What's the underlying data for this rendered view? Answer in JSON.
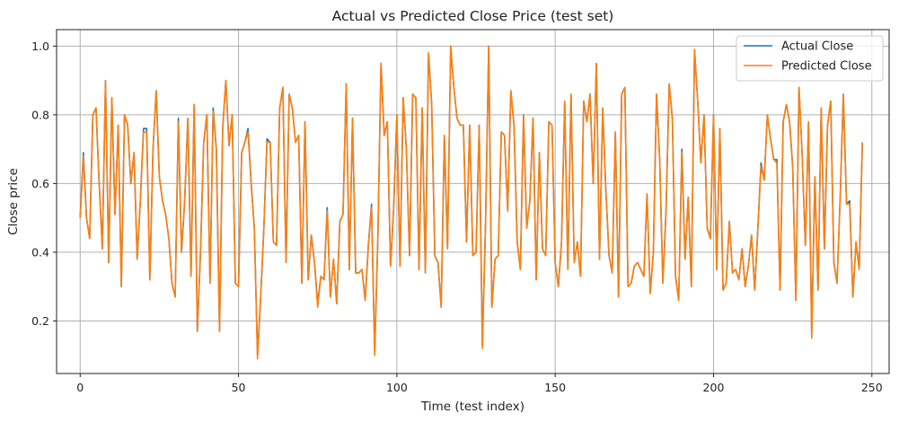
{
  "chart_data": {
    "type": "line",
    "title": "Actual vs Predicted Close Price (test set)",
    "xlabel": "Time (test index)",
    "ylabel": "Close price",
    "xlim": [
      -7.45,
      255.45
    ],
    "ylim": [
      0.047,
      1.048
    ],
    "xticks": [
      0,
      50,
      100,
      150,
      200,
      250
    ],
    "yticks": [
      0.2,
      0.4,
      0.6,
      0.8,
      1.0
    ],
    "xtick_labels": [
      "0",
      "50",
      "100",
      "150",
      "200",
      "250"
    ],
    "ytick_labels": [
      "0.2",
      "0.4",
      "0.6",
      "0.8",
      "1.0"
    ],
    "grid": true,
    "legend_position": "top-right",
    "series": [
      {
        "name": "Actual Close",
        "color": "#1f77b4",
        "values": [
          0.5,
          0.69,
          0.5,
          0.44,
          0.8,
          0.82,
          0.6,
          0.41,
          0.9,
          0.37,
          0.85,
          0.51,
          0.77,
          0.3,
          0.8,
          0.77,
          0.6,
          0.69,
          0.38,
          0.55,
          0.76,
          0.76,
          0.32,
          0.7,
          0.87,
          0.62,
          0.55,
          0.51,
          0.44,
          0.31,
          0.27,
          0.79,
          0.4,
          0.55,
          0.79,
          0.33,
          0.83,
          0.17,
          0.4,
          0.72,
          0.8,
          0.31,
          0.82,
          0.7,
          0.17,
          0.76,
          0.9,
          0.71,
          0.8,
          0.31,
          0.3,
          0.69,
          0.72,
          0.76,
          0.6,
          0.47,
          0.1,
          0.27,
          0.47,
          0.73,
          0.72,
          0.43,
          0.42,
          0.82,
          0.88,
          0.37,
          0.86,
          0.82,
          0.72,
          0.74,
          0.31,
          0.78,
          0.32,
          0.45,
          0.37,
          0.25,
          0.33,
          0.32,
          0.53,
          0.27,
          0.38,
          0.25,
          0.49,
          0.51,
          0.89,
          0.35,
          0.79,
          0.34,
          0.34,
          0.35,
          0.26,
          0.42,
          0.54,
          0.11,
          0.44,
          0.95,
          0.74,
          0.78,
          0.36,
          0.53,
          0.8,
          0.36,
          0.85,
          0.7,
          0.39,
          0.86,
          0.85,
          0.35,
          0.82,
          0.34,
          0.98,
          0.83,
          0.39,
          0.37,
          0.24,
          0.74,
          0.41,
          1.0,
          0.88,
          0.79,
          0.77,
          0.77,
          0.43,
          0.77,
          0.39,
          0.4,
          0.77,
          0.13,
          0.48,
          1.0,
          0.24,
          0.38,
          0.39,
          0.75,
          0.74,
          0.52,
          0.87,
          0.77,
          0.43,
          0.35,
          0.8,
          0.47,
          0.55,
          0.79,
          0.32,
          0.69,
          0.41,
          0.39,
          0.78,
          0.77,
          0.37,
          0.3,
          0.43,
          0.84,
          0.35,
          0.86,
          0.37,
          0.43,
          0.33,
          0.84,
          0.78,
          0.86,
          0.6,
          0.95,
          0.38,
          0.82,
          0.58,
          0.39,
          0.34,
          0.75,
          0.27,
          0.86,
          0.88,
          0.3,
          0.31,
          0.36,
          0.37,
          0.35,
          0.33,
          0.57,
          0.28,
          0.4,
          0.86,
          0.67,
          0.31,
          0.52,
          0.89,
          0.79,
          0.33,
          0.26,
          0.7,
          0.38,
          0.56,
          0.3,
          0.99,
          0.84,
          0.66,
          0.8,
          0.47,
          0.44,
          0.8,
          0.35,
          0.76,
          0.29,
          0.31,
          0.49,
          0.34,
          0.35,
          0.32,
          0.41,
          0.3,
          0.36,
          0.45,
          0.29,
          0.47,
          0.66,
          0.61,
          0.8,
          0.73,
          0.67,
          0.67,
          0.29,
          0.78,
          0.83,
          0.78,
          0.65,
          0.26,
          0.88,
          0.68,
          0.42,
          0.78,
          0.16,
          0.62,
          0.29,
          0.82,
          0.41,
          0.77,
          0.84,
          0.37,
          0.31,
          0.56,
          0.86,
          0.54,
          0.55,
          0.27,
          0.43,
          0.35,
          0.72
        ]
      },
      {
        "name": "Predicted Close",
        "color": "#ff7f0e",
        "values": [
          0.5,
          0.68,
          0.5,
          0.44,
          0.8,
          0.82,
          0.6,
          0.41,
          0.9,
          0.37,
          0.85,
          0.51,
          0.77,
          0.3,
          0.8,
          0.77,
          0.6,
          0.69,
          0.38,
          0.55,
          0.75,
          0.75,
          0.32,
          0.7,
          0.87,
          0.62,
          0.55,
          0.51,
          0.44,
          0.31,
          0.27,
          0.78,
          0.4,
          0.55,
          0.79,
          0.33,
          0.83,
          0.17,
          0.4,
          0.72,
          0.8,
          0.31,
          0.81,
          0.7,
          0.17,
          0.76,
          0.9,
          0.71,
          0.8,
          0.31,
          0.3,
          0.69,
          0.72,
          0.75,
          0.6,
          0.47,
          0.09,
          0.27,
          0.47,
          0.72,
          0.72,
          0.43,
          0.42,
          0.82,
          0.88,
          0.37,
          0.86,
          0.82,
          0.72,
          0.74,
          0.31,
          0.78,
          0.32,
          0.45,
          0.37,
          0.24,
          0.33,
          0.32,
          0.52,
          0.27,
          0.38,
          0.25,
          0.49,
          0.51,
          0.89,
          0.35,
          0.79,
          0.34,
          0.34,
          0.35,
          0.26,
          0.42,
          0.53,
          0.1,
          0.44,
          0.95,
          0.74,
          0.78,
          0.36,
          0.53,
          0.8,
          0.36,
          0.85,
          0.7,
          0.39,
          0.86,
          0.85,
          0.35,
          0.82,
          0.34,
          0.98,
          0.83,
          0.39,
          0.37,
          0.24,
          0.74,
          0.41,
          1.0,
          0.88,
          0.79,
          0.77,
          0.77,
          0.43,
          0.77,
          0.39,
          0.4,
          0.77,
          0.12,
          0.48,
          1.0,
          0.24,
          0.38,
          0.39,
          0.75,
          0.74,
          0.52,
          0.87,
          0.77,
          0.43,
          0.35,
          0.8,
          0.47,
          0.55,
          0.79,
          0.32,
          0.69,
          0.41,
          0.39,
          0.78,
          0.77,
          0.37,
          0.3,
          0.43,
          0.84,
          0.35,
          0.86,
          0.37,
          0.43,
          0.33,
          0.84,
          0.78,
          0.86,
          0.6,
          0.95,
          0.38,
          0.82,
          0.58,
          0.39,
          0.34,
          0.75,
          0.27,
          0.86,
          0.88,
          0.3,
          0.31,
          0.36,
          0.37,
          0.35,
          0.33,
          0.57,
          0.28,
          0.4,
          0.86,
          0.67,
          0.31,
          0.52,
          0.89,
          0.79,
          0.33,
          0.26,
          0.69,
          0.38,
          0.56,
          0.3,
          0.99,
          0.84,
          0.66,
          0.8,
          0.47,
          0.44,
          0.8,
          0.35,
          0.76,
          0.29,
          0.31,
          0.49,
          0.34,
          0.35,
          0.32,
          0.41,
          0.3,
          0.36,
          0.45,
          0.29,
          0.47,
          0.65,
          0.61,
          0.8,
          0.73,
          0.67,
          0.66,
          0.29,
          0.78,
          0.83,
          0.78,
          0.65,
          0.26,
          0.88,
          0.68,
          0.42,
          0.78,
          0.15,
          0.62,
          0.29,
          0.82,
          0.41,
          0.77,
          0.84,
          0.37,
          0.31,
          0.56,
          0.86,
          0.54,
          0.54,
          0.27,
          0.43,
          0.35,
          0.72
        ]
      }
    ]
  }
}
